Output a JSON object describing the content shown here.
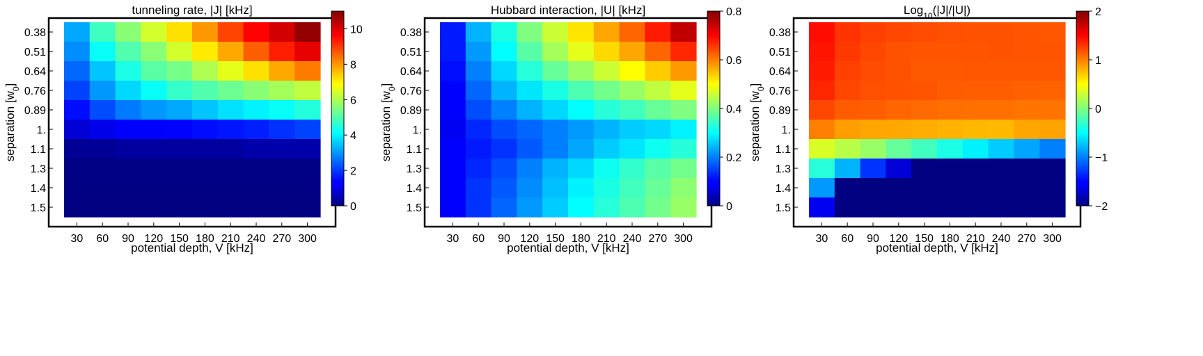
{
  "x_ticks": [
    "30",
    "60",
    "90",
    "120",
    "150",
    "180",
    "210",
    "240",
    "270",
    "300"
  ],
  "y_ticks": [
    "0.38",
    "0.51",
    "0.64",
    "0.76",
    "0.89",
    "1.",
    "1.1",
    "1.3",
    "1.4",
    "1.5"
  ],
  "xlabel": "potential depth, V [kHz]",
  "ylabel_main": "separation [w",
  "ylabel_sub": "0",
  "ylabel_end": "]",
  "chart_data": [
    {
      "type": "heatmap",
      "title": "tunneling rate, |J| [kHz]",
      "colorbar": {
        "min": 0,
        "max": 11,
        "ticks": [
          0,
          2,
          4,
          6,
          8,
          10
        ],
        "tick_labels": [
          "0",
          "2",
          "4",
          "6",
          "8",
          "10"
        ]
      },
      "values": [
        [
          3.2,
          4.8,
          5.6,
          6.4,
          7.2,
          8.0,
          8.9,
          9.6,
          10.1,
          10.8
        ],
        [
          2.9,
          4.2,
          5.0,
          5.6,
          6.4,
          7.1,
          7.8,
          8.6,
          9.3,
          9.9
        ],
        [
          2.5,
          3.5,
          4.4,
          5.1,
          5.4,
          6.0,
          6.6,
          7.2,
          7.8,
          8.3
        ],
        [
          2.1,
          3.0,
          3.7,
          4.2,
          4.7,
          5.0,
          5.3,
          5.6,
          5.9,
          6.2
        ],
        [
          1.5,
          2.2,
          2.7,
          3.0,
          3.2,
          3.5,
          3.8,
          4.0,
          4.2,
          4.5
        ],
        [
          0.8,
          1.0,
          1.2,
          1.3,
          1.4,
          1.5,
          1.6,
          1.7,
          1.9,
          2.1
        ],
        [
          0.2,
          0.2,
          0.3,
          0.3,
          0.3,
          0.3,
          0.3,
          0.4,
          0.4,
          0.4
        ],
        [
          0.05,
          0.05,
          0.05,
          0.05,
          0.05,
          0.05,
          0.05,
          0.05,
          0.05,
          0.05
        ],
        [
          0.02,
          0.02,
          0.02,
          0.02,
          0.02,
          0.02,
          0.02,
          0.02,
          0.02,
          0.02
        ],
        [
          0.01,
          0.01,
          0.01,
          0.01,
          0.01,
          0.01,
          0.01,
          0.01,
          0.01,
          0.01
        ]
      ]
    },
    {
      "type": "heatmap",
      "title": "Hubbard interaction, |U| [kHz]",
      "colorbar": {
        "min": 0,
        "max": 0.8,
        "ticks": [
          0,
          0.2,
          0.4,
          0.6,
          0.8
        ],
        "tick_labels": [
          "0",
          "0.2",
          "0.4",
          "0.6",
          "0.8"
        ]
      },
      "values": [
        [
          0.12,
          0.24,
          0.32,
          0.4,
          0.46,
          0.52,
          0.57,
          0.62,
          0.68,
          0.75
        ],
        [
          0.12,
          0.22,
          0.3,
          0.37,
          0.43,
          0.48,
          0.53,
          0.57,
          0.62,
          0.67
        ],
        [
          0.11,
          0.2,
          0.27,
          0.33,
          0.38,
          0.42,
          0.46,
          0.5,
          0.54,
          0.58
        ],
        [
          0.1,
          0.18,
          0.24,
          0.28,
          0.32,
          0.36,
          0.39,
          0.42,
          0.45,
          0.48
        ],
        [
          0.09,
          0.16,
          0.2,
          0.24,
          0.27,
          0.3,
          0.33,
          0.35,
          0.38,
          0.4
        ],
        [
          0.08,
          0.13,
          0.16,
          0.18,
          0.2,
          0.22,
          0.24,
          0.26,
          0.27,
          0.29
        ],
        [
          0.09,
          0.12,
          0.14,
          0.17,
          0.2,
          0.23,
          0.26,
          0.28,
          0.31,
          0.33
        ],
        [
          0.1,
          0.13,
          0.16,
          0.2,
          0.24,
          0.27,
          0.31,
          0.34,
          0.37,
          0.39
        ],
        [
          0.1,
          0.14,
          0.17,
          0.21,
          0.25,
          0.29,
          0.32,
          0.35,
          0.38,
          0.41
        ],
        [
          0.1,
          0.14,
          0.18,
          0.22,
          0.26,
          0.3,
          0.33,
          0.36,
          0.39,
          0.42
        ]
      ]
    },
    {
      "type": "heatmap",
      "title_main": "Log",
      "title_sub": "10",
      "title_end": "(|J|/|U|)",
      "colorbar": {
        "min": -2,
        "max": 2,
        "ticks": [
          -2,
          -1,
          0,
          1,
          2
        ],
        "tick_labels": [
          "−2",
          "−1",
          "0",
          "1",
          "2"
        ]
      },
      "values": [
        [
          1.45,
          1.3,
          1.25,
          1.22,
          1.2,
          1.19,
          1.18,
          1.18,
          1.17,
          1.16
        ],
        [
          1.42,
          1.28,
          1.22,
          1.18,
          1.17,
          1.17,
          1.17,
          1.18,
          1.17,
          1.17
        ],
        [
          1.4,
          1.25,
          1.2,
          1.18,
          1.15,
          1.15,
          1.16,
          1.16,
          1.16,
          1.16
        ],
        [
          1.35,
          1.22,
          1.19,
          1.18,
          1.17,
          1.14,
          1.13,
          1.13,
          1.12,
          1.11
        ],
        [
          1.22,
          1.14,
          1.13,
          1.1,
          1.08,
          1.07,
          1.06,
          1.06,
          1.04,
          1.05
        ],
        [
          1.0,
          0.88,
          0.85,
          0.84,
          0.82,
          0.8,
          0.78,
          0.77,
          0.85,
          0.86
        ],
        [
          0.35,
          0.22,
          0.1,
          -0.1,
          -0.25,
          -0.4,
          -0.55,
          -0.7,
          -0.85,
          -1.0
        ],
        [
          -0.35,
          -0.8,
          -1.3,
          -1.7,
          -2.0,
          -2.0,
          -2.0,
          -2.0,
          -2.0,
          -2.0
        ],
        [
          -0.9,
          -2.0,
          -2.0,
          -2.0,
          -2.0,
          -2.0,
          -2.0,
          -2.0,
          -2.0,
          -2.0
        ],
        [
          -1.6,
          -2.0,
          -2.0,
          -2.0,
          -2.0,
          -2.0,
          -2.0,
          -2.0,
          -2.0,
          -2.0
        ]
      ]
    }
  ]
}
